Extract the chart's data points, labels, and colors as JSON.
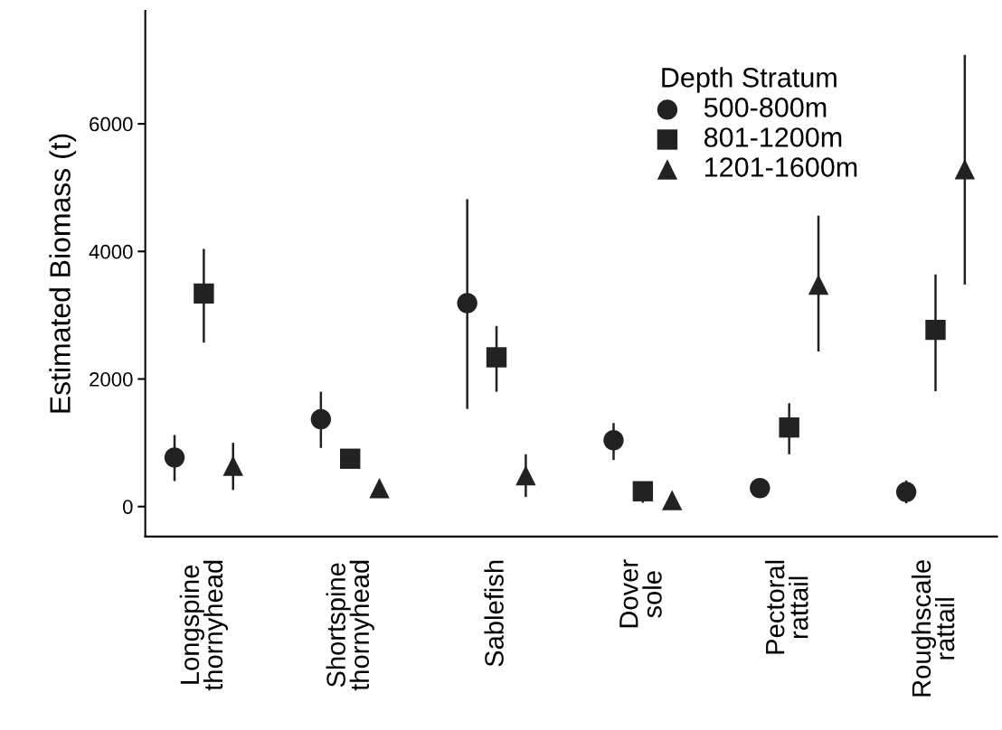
{
  "chart_data": {
    "type": "scatter",
    "ylabel": "Estimated Biomass (t)",
    "legend_title": "Depth Stratum",
    "categories": [
      "Longspine\nthornyhead",
      "Shortspine\nthornyhead",
      "Sablefish",
      "Dover\nsole",
      "Pectoral\nrattail",
      "Roughscale\nrattail"
    ],
    "series": [
      {
        "name": "500-800m",
        "color": "#222222",
        "marker": "circle",
        "values": [
          770,
          1370,
          3190,
          1040,
          290,
          230
        ],
        "errors": [
          [
            400,
            1120
          ],
          [
            920,
            1800
          ],
          [
            1530,
            4820
          ],
          [
            730,
            1310
          ],
          null,
          [
            50,
            410
          ]
        ]
      },
      {
        "name": "801-1200m",
        "color": "#222222",
        "marker": "square",
        "values": [
          3340,
          750,
          2340,
          240,
          1240,
          2770
        ],
        "errors": [
          [
            2570,
            4040
          ],
          null,
          [
            1800,
            2830
          ],
          [
            60,
            380
          ],
          [
            820,
            1620
          ],
          [
            1810,
            3640
          ]
        ]
      },
      {
        "name": "1201-1600m",
        "color": "#222222",
        "marker": "triangle",
        "values": [
          640,
          290,
          490,
          100,
          3480,
          5290
        ],
        "errors": [
          [
            260,
            1000
          ],
          null,
          [
            150,
            820
          ],
          null,
          [
            2430,
            4560
          ],
          [
            3480,
            7080
          ]
        ]
      }
    ],
    "ylim": [
      -470,
      7770
    ],
    "yticks": [
      0,
      2000,
      4000,
      6000
    ],
    "grid": false,
    "legend": "top right"
  }
}
